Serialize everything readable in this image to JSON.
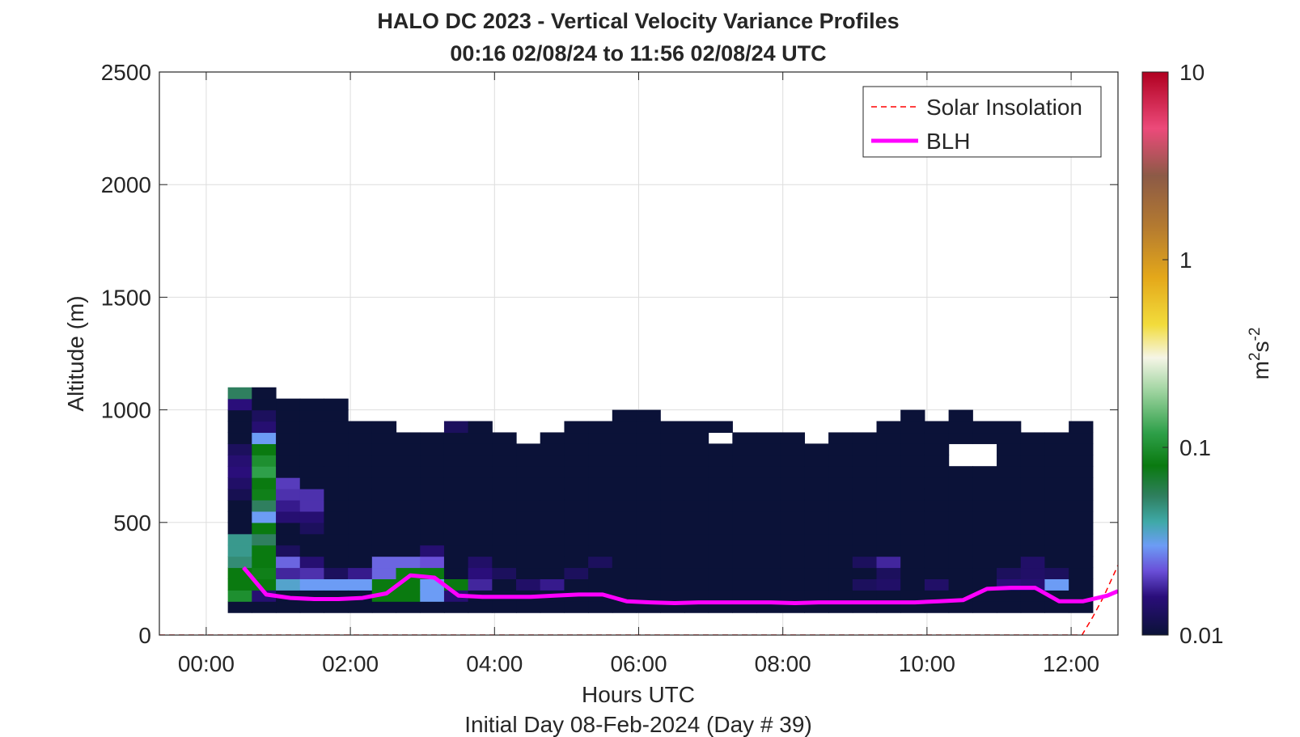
{
  "chart_data": {
    "type": "heatmap",
    "title": "HALO DC 2023 - Vertical Velocity Variance Profiles",
    "subtitle": "00:16 02/08/24 to 11:56 02/08/24  UTC",
    "xlabel": "Hours UTC",
    "footer": "Initial Day 08-Feb-2024 (Day # 39)",
    "ylabel": "Altitude (m)",
    "xlim": [
      -0.65,
      12.65
    ],
    "ylim": [
      0,
      2500
    ],
    "xticks": [
      0,
      2,
      4,
      6,
      8,
      10,
      12
    ],
    "xtick_labels": [
      "00:00",
      "02:00",
      "04:00",
      "06:00",
      "08:00",
      "10:00",
      "12:00"
    ],
    "yticks": [
      0,
      500,
      1000,
      1500,
      2000,
      2500
    ],
    "ytick_labels": [
      "0",
      "500",
      "1000",
      "1500",
      "2000",
      "2500"
    ],
    "grid": true,
    "legend": {
      "placement": "top-right",
      "entries": [
        {
          "label": "Solar Insolation",
          "style": "dashed",
          "color": "#ff0000"
        },
        {
          "label": "BLH",
          "style": "solid",
          "color": "#ff00ff"
        }
      ]
    },
    "colorbar": {
      "scale": "log",
      "range": [
        0.01,
        10
      ],
      "ticks": [
        0.01,
        0.1,
        1,
        10
      ],
      "tick_labels": [
        "0.01",
        "0.1",
        "1",
        "10"
      ],
      "label_main": "m",
      "label_sup1": "2",
      "label_mid": "s",
      "label_sup2": "-2",
      "stops": [
        {
          "v": 0.01,
          "c": "#0b1238"
        },
        {
          "v": 0.016,
          "c": "#2a0e7a"
        },
        {
          "v": 0.022,
          "c": "#6a4fd8"
        },
        {
          "v": 0.03,
          "c": "#6c9cf5"
        },
        {
          "v": 0.04,
          "c": "#3fa9a8"
        },
        {
          "v": 0.055,
          "c": "#2f7f5f"
        },
        {
          "v": 0.08,
          "c": "#0a7a10"
        },
        {
          "v": 0.12,
          "c": "#2fa04a"
        },
        {
          "v": 0.2,
          "c": "#9fd4a0"
        },
        {
          "v": 0.3,
          "c": "#f5f5e6"
        },
        {
          "v": 0.45,
          "c": "#f2dc3c"
        },
        {
          "v": 0.8,
          "c": "#e4a81a"
        },
        {
          "v": 1.5,
          "c": "#b47a30"
        },
        {
          "v": 2.8,
          "c": "#8c5a46"
        },
        {
          "v": 5,
          "c": "#ec4a7a"
        },
        {
          "v": 10,
          "c": "#b00020"
        }
      ]
    },
    "time_bins": [
      0.3,
      0.633,
      0.967,
      1.3,
      1.633,
      1.967,
      2.3,
      2.633,
      2.967,
      3.3,
      3.633,
      3.967,
      4.3,
      4.633,
      4.967,
      5.3,
      5.633,
      5.967,
      6.3,
      6.633,
      6.967,
      7.3,
      7.633,
      7.967,
      8.3,
      8.633,
      8.967,
      9.3,
      9.633,
      9.967,
      10.3,
      10.633,
      10.967,
      11.3,
      11.633,
      11.967
    ],
    "range_bottom": 100,
    "gate_height": 50,
    "profile_tops": [
      1100,
      1100,
      1050,
      1050,
      1050,
      950,
      950,
      900,
      900,
      950,
      950,
      900,
      850,
      900,
      950,
      950,
      1000,
      1000,
      950,
      950,
      950,
      900,
      900,
      900,
      850,
      900,
      900,
      950,
      1000,
      950,
      1000,
      950,
      950,
      900,
      950,
      950
    ],
    "missing_cells": [
      [
        20,
        15
      ],
      [
        30,
        13
      ],
      [
        30,
        14
      ],
      [
        31,
        13
      ],
      [
        31,
        14
      ],
      [
        33,
        16
      ],
      [
        34,
        16
      ]
    ],
    "cells": [
      [
        0,
        19,
        0.055
      ],
      [
        0,
        18,
        0.016
      ],
      [
        0,
        14,
        0.013
      ],
      [
        0,
        13,
        0.015
      ],
      [
        0,
        12,
        0.016
      ],
      [
        0,
        11,
        0.014
      ],
      [
        0,
        10,
        0.012
      ],
      [
        0,
        6,
        0.045
      ],
      [
        0,
        5,
        0.045
      ],
      [
        0,
        4,
        0.05
      ],
      [
        0,
        3,
        0.08
      ],
      [
        0,
        2,
        0.08
      ],
      [
        0,
        1,
        0.1
      ],
      [
        1,
        17,
        0.013
      ],
      [
        1,
        16,
        0.015
      ],
      [
        1,
        15,
        0.03
      ],
      [
        1,
        14,
        0.08
      ],
      [
        1,
        13,
        0.1
      ],
      [
        1,
        12,
        0.12
      ],
      [
        1,
        11,
        0.08
      ],
      [
        1,
        10,
        0.085
      ],
      [
        1,
        9,
        0.055
      ],
      [
        1,
        8,
        0.03
      ],
      [
        1,
        7,
        0.08
      ],
      [
        1,
        6,
        0.055
      ],
      [
        1,
        5,
        0.08
      ],
      [
        1,
        4,
        0.08
      ],
      [
        1,
        3,
        0.085
      ],
      [
        1,
        2,
        0.08
      ],
      [
        1,
        1,
        0.015
      ],
      [
        2,
        11,
        0.02
      ],
      [
        2,
        10,
        0.019
      ],
      [
        2,
        9,
        0.017
      ],
      [
        2,
        8,
        0.015
      ],
      [
        2,
        5,
        0.013
      ],
      [
        2,
        4,
        0.024
      ],
      [
        2,
        3,
        0.018
      ],
      [
        2,
        2,
        0.035
      ],
      [
        3,
        10,
        0.019
      ],
      [
        3,
        9,
        0.019
      ],
      [
        3,
        8,
        0.015
      ],
      [
        3,
        7,
        0.013
      ],
      [
        3,
        4,
        0.015
      ],
      [
        3,
        3,
        0.019
      ],
      [
        3,
        2,
        0.03
      ],
      [
        4,
        3,
        0.013
      ],
      [
        4,
        2,
        0.03
      ],
      [
        5,
        17,
        0.014
      ],
      [
        5,
        3,
        0.017
      ],
      [
        5,
        2,
        0.03
      ],
      [
        6,
        4,
        0.024
      ],
      [
        6,
        3,
        0.024
      ],
      [
        6,
        2,
        0.08
      ],
      [
        6,
        1,
        0.08
      ],
      [
        7,
        4,
        0.024
      ],
      [
        7,
        3,
        0.08
      ],
      [
        7,
        2,
        0.08
      ],
      [
        7,
        1,
        0.08
      ],
      [
        8,
        16,
        0.013
      ],
      [
        8,
        5,
        0.015
      ],
      [
        8,
        4,
        0.022
      ],
      [
        8,
        3,
        0.08
      ],
      [
        8,
        2,
        0.03
      ],
      [
        8,
        1,
        0.03
      ],
      [
        9,
        17,
        0.016
      ],
      [
        9,
        16,
        0.013
      ],
      [
        9,
        2,
        0.08
      ],
      [
        9,
        1,
        0.015
      ],
      [
        10,
        17,
        0.03
      ],
      [
        10,
        4,
        0.014
      ],
      [
        10,
        3,
        0.016
      ],
      [
        10,
        2,
        0.018
      ],
      [
        11,
        3,
        0.013
      ],
      [
        12,
        2,
        0.014
      ],
      [
        13,
        16,
        0.014
      ],
      [
        13,
        2,
        0.017
      ],
      [
        14,
        17,
        0.016
      ],
      [
        14,
        3,
        0.013
      ],
      [
        15,
        17,
        0.014
      ],
      [
        15,
        4,
        0.013
      ],
      [
        16,
        18,
        0.016
      ],
      [
        17,
        18,
        0.022
      ],
      [
        18,
        18,
        0.055
      ],
      [
        24,
        16,
        0.08
      ],
      [
        25,
        16,
        0.055
      ],
      [
        26,
        17,
        0.013
      ],
      [
        26,
        4,
        0.013
      ],
      [
        26,
        2,
        0.013
      ],
      [
        27,
        4,
        0.018
      ],
      [
        27,
        3,
        0.013
      ],
      [
        27,
        2,
        0.014
      ],
      [
        29,
        2,
        0.014
      ],
      [
        32,
        3,
        0.013
      ],
      [
        32,
        2,
        0.016
      ],
      [
        33,
        3,
        0.014
      ],
      [
        33,
        2,
        0.015
      ],
      [
        33,
        4,
        0.014
      ],
      [
        34,
        3,
        0.013
      ],
      [
        34,
        2,
        0.03
      ]
    ],
    "blh": {
      "x": [
        0.517,
        0.833,
        1.167,
        1.5,
        1.833,
        2.167,
        2.5,
        2.833,
        3.167,
        3.5,
        3.833,
        4.167,
        4.5,
        4.833,
        5.167,
        5.5,
        5.833,
        6.167,
        6.5,
        6.833,
        7.167,
        7.5,
        7.833,
        8.167,
        8.5,
        8.833,
        9.167,
        9.5,
        9.833,
        10.167,
        10.5,
        10.833,
        11.167,
        11.5,
        11.833,
        12.167,
        12.5,
        12.65
      ],
      "y": [
        300,
        180,
        165,
        160,
        160,
        165,
        185,
        265,
        255,
        175,
        170,
        170,
        170,
        175,
        180,
        180,
        150,
        145,
        142,
        145,
        145,
        145,
        145,
        142,
        145,
        145,
        145,
        145,
        145,
        150,
        155,
        205,
        210,
        210,
        150,
        150,
        175,
        195
      ]
    },
    "solar": {
      "x": [
        -0.65,
        12.15,
        12.3,
        12.45,
        12.65
      ],
      "y": [
        0,
        0,
        80,
        170,
        310
      ]
    }
  }
}
